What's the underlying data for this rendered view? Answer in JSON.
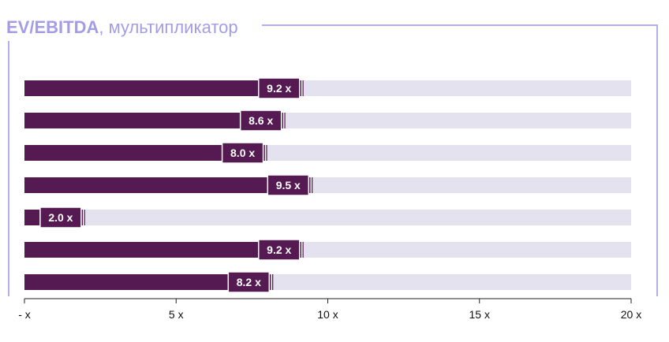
{
  "title": {
    "bold": "EV/EBITDA",
    "rest": ", мультипликатор"
  },
  "colors": {
    "bar": "#561a52",
    "track": "#e4e2ee",
    "frame": "#b3aef0",
    "title": "#a39de8"
  },
  "chart_data": {
    "type": "bar",
    "orientation": "horizontal",
    "values": [
      9.2,
      8.6,
      8.0,
      9.5,
      2.0,
      9.2,
      8.2
    ],
    "value_labels": [
      "9.2 x",
      "8.6 x",
      "8.0 x",
      "9.5 x",
      "2.0 x",
      "9.2 x",
      "8.2 x"
    ],
    "xlim": [
      0,
      20
    ],
    "xticks": [
      0,
      5,
      10,
      15,
      20
    ],
    "xtick_labels": [
      "- x",
      "5 x",
      "10 x",
      "15 x",
      "20 x"
    ],
    "grid": false
  }
}
